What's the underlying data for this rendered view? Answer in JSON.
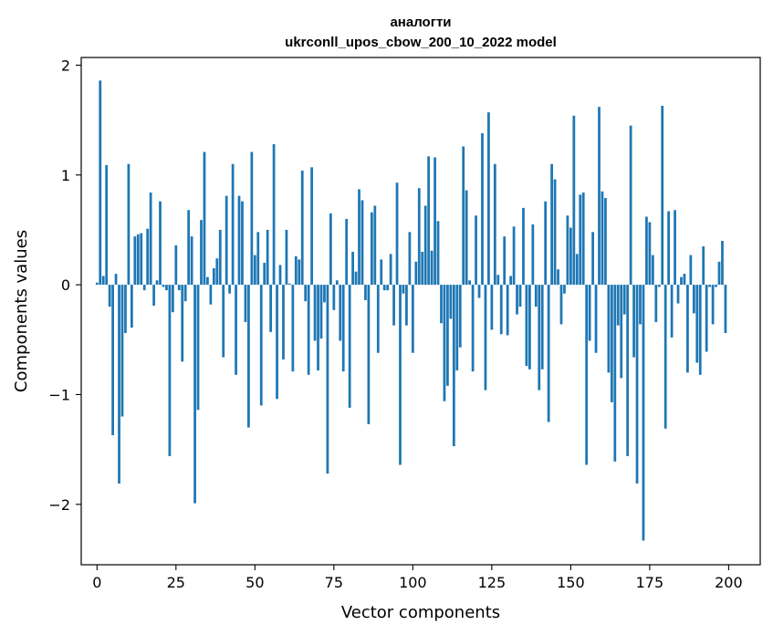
{
  "chart_data": {
    "type": "bar",
    "title": "аналогти",
    "subtitle": "ukrconll_upos_cbow_200_10_2022 model",
    "xlabel": "Vector components",
    "ylabel": "Components values",
    "xlim": [
      -5,
      210
    ],
    "ylim": [
      -2.55,
      2.07
    ],
    "xticks": [
      0,
      25,
      50,
      75,
      100,
      125,
      150,
      175,
      200
    ],
    "yticks": [
      -2,
      -1,
      0,
      1,
      2
    ],
    "ytick_labels": [
      "−2",
      "−1",
      "0",
      "1",
      "2"
    ],
    "grid": false,
    "bar_color": "#1f77b4",
    "values": [
      0.02,
      1.86,
      0.08,
      1.09,
      -0.2,
      -1.37,
      0.1,
      -1.81,
      -1.2,
      -0.44,
      1.1,
      -0.39,
      0.44,
      0.46,
      0.47,
      -0.05,
      0.51,
      0.84,
      -0.19,
      0.04,
      0.76,
      -0.02,
      -0.05,
      -1.56,
      -0.25,
      0.36,
      -0.05,
      -0.7,
      -0.15,
      0.68,
      0.44,
      -1.99,
      -1.14,
      0.59,
      1.21,
      0.07,
      -0.18,
      0.15,
      0.24,
      0.5,
      -0.66,
      0.81,
      -0.08,
      1.1,
      -0.82,
      0.81,
      0.76,
      -0.34,
      -1.3,
      1.21,
      0.27,
      0.48,
      -1.1,
      0.2,
      0.5,
      -0.43,
      1.28,
      -1.04,
      0.18,
      -0.68,
      0.5,
      0.01,
      -0.79,
      0.26,
      0.23,
      1.04,
      -0.15,
      -0.82,
      1.07,
      -0.51,
      -0.78,
      -0.49,
      -0.16,
      -1.72,
      0.65,
      -0.23,
      0.04,
      -0.51,
      -0.79,
      0.6,
      -1.12,
      0.3,
      0.12,
      0.87,
      0.77,
      -0.14,
      -1.27,
      0.66,
      0.72,
      -0.62,
      0.23,
      -0.05,
      -0.05,
      0.28,
      -0.37,
      0.93,
      -1.64,
      -0.08,
      -0.37,
      0.48,
      -0.62,
      0.21,
      0.88,
      0.3,
      0.72,
      1.17,
      0.31,
      1.16,
      0.58,
      -0.35,
      -1.06,
      -0.92,
      -0.31,
      -1.47,
      -0.78,
      -0.57,
      1.26,
      0.86,
      0.04,
      -0.79,
      0.63,
      -0.12,
      1.38,
      -0.96,
      1.57,
      -0.41,
      1.1,
      0.09,
      -0.45,
      0.44,
      -0.46,
      0.08,
      0.53,
      -0.27,
      -0.2,
      0.7,
      -0.74,
      -0.77,
      0.55,
      -0.2,
      -0.96,
      -0.77,
      0.76,
      -1.25,
      1.1,
      0.96,
      0.14,
      -0.36,
      -0.08,
      0.63,
      0.52,
      1.54,
      0.28,
      0.82,
      0.84,
      -1.64,
      -0.51,
      0.48,
      -0.62,
      1.62,
      0.85,
      0.79,
      -0.8,
      -1.07,
      -1.61,
      -0.37,
      -0.85,
      -0.27,
      -1.56,
      1.45,
      -0.66,
      -1.81,
      -0.36,
      -2.33,
      0.62,
      0.57,
      0.27,
      -0.34,
      -0.02,
      1.63,
      -1.31,
      0.67,
      -0.48,
      0.68,
      -0.17,
      0.07,
      0.1,
      -0.8,
      0.27,
      -0.26,
      -0.71,
      -0.82,
      0.35,
      -0.61,
      -0.02,
      -0.36,
      -0.02,
      0.21,
      0.4,
      -0.44
    ]
  }
}
